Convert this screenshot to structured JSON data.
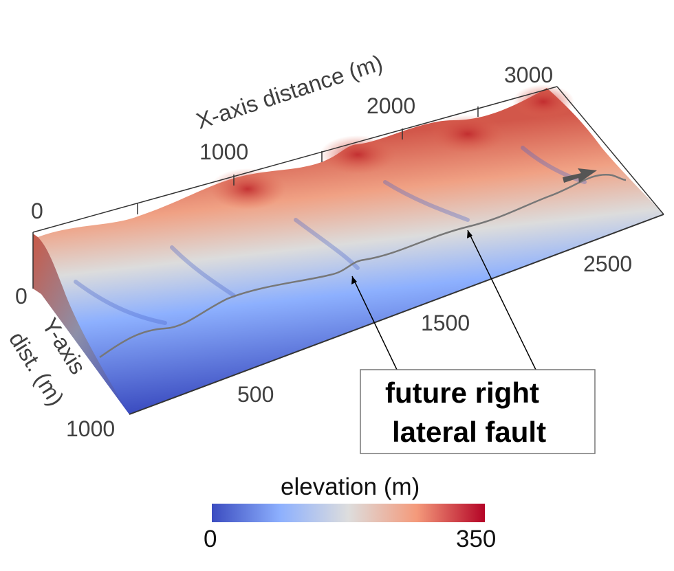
{
  "figure": {
    "x_axis": {
      "title": "X-axis distance (m)",
      "tick_labels": [
        "0",
        "1000",
        "2000",
        "3000"
      ]
    },
    "y_axis": {
      "title_line1": "Y-axis",
      "title_line2": "dist. (m)",
      "tick_labels": [
        "0",
        "1000"
      ]
    },
    "front_edge_tick_labels": [
      "500",
      "1500",
      "2500"
    ],
    "callout": {
      "line1": "future right",
      "line2": "lateral fault"
    },
    "colorbar": {
      "title": "elevation (m)",
      "min_label": "0",
      "max_label": "350",
      "colors": [
        "#3b4cc0",
        "#8db0fe",
        "#dddddd",
        "#f49a7b",
        "#b40426"
      ]
    },
    "colors": {
      "fault_trace": "#777777",
      "box_frame": "#333333",
      "arrow": "#555555"
    }
  }
}
